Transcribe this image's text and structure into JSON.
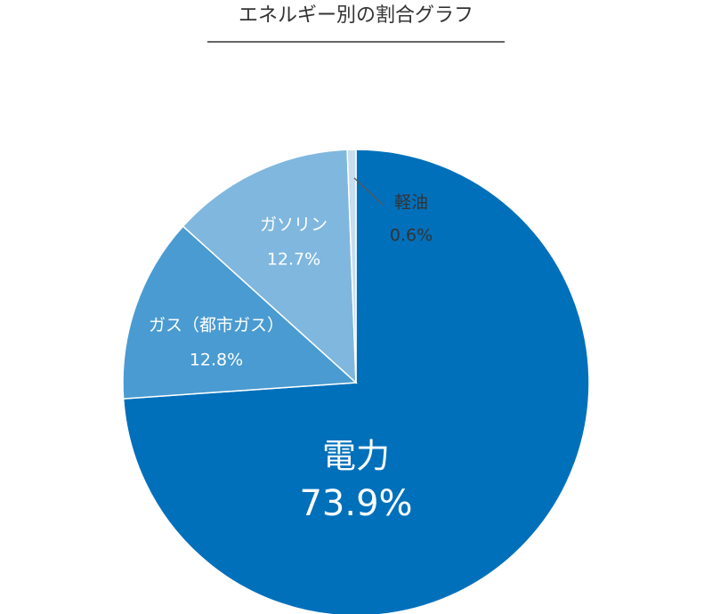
{
  "chart_data": {
    "type": "pie",
    "title": "エネルギー別の割合グラフ",
    "categories": [
      "電力",
      "ガス（都市ガス）",
      "ガソリン",
      "軽油"
    ],
    "values": [
      73.9,
      12.8,
      12.7,
      0.6
    ],
    "value_labels": [
      "73.9%",
      "12.8%",
      "12.7%",
      "0.6%"
    ],
    "colors": [
      "#0070bb",
      "#4a9bd1",
      "#80b7de",
      "#c6ddf0"
    ]
  }
}
